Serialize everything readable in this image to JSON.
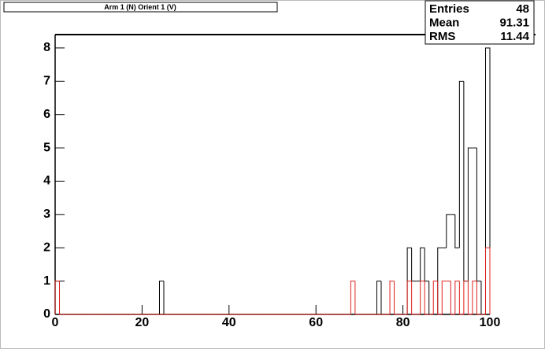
{
  "chart_data": {
    "type": "histogram",
    "title": "Arm 1 (N) Orient 1 (V)",
    "stats": [
      {
        "label": "Entries",
        "value": 48
      },
      {
        "label": "Mean",
        "value": 91.31
      },
      {
        "label": "RMS",
        "value": 11.44
      }
    ],
    "bins": [
      0,
      1,
      2,
      3,
      4,
      5,
      6,
      7,
      8,
      9,
      10,
      11,
      12,
      13,
      14,
      15,
      16,
      17,
      18,
      19,
      20,
      21,
      22,
      23,
      24,
      25,
      26,
      27,
      28,
      29,
      30,
      31,
      32,
      33,
      34,
      35,
      36,
      37,
      38,
      39,
      40,
      41,
      42,
      43,
      44,
      45,
      46,
      47,
      48,
      49,
      50,
      51,
      52,
      53,
      54,
      55,
      56,
      57,
      58,
      59,
      60,
      61,
      62,
      63,
      64,
      65,
      66,
      67,
      68,
      69,
      70,
      71,
      72,
      73,
      74,
      75,
      76,
      77,
      78,
      79,
      80,
      81,
      82,
      83,
      84,
      85,
      86,
      87,
      88,
      89,
      90,
      91,
      92,
      93,
      94,
      95,
      96,
      97,
      98,
      99,
      100
    ],
    "series": [
      {
        "color": "#000000",
        "values": [
          0,
          0,
          0,
          0,
          0,
          0,
          0,
          0,
          0,
          0,
          0,
          0,
          0,
          0,
          0,
          0,
          0,
          0,
          0,
          0,
          0,
          0,
          0,
          0,
          1,
          0,
          0,
          0,
          0,
          0,
          0,
          0,
          0,
          0,
          0,
          0,
          0,
          0,
          0,
          0,
          0,
          0,
          0,
          0,
          0,
          0,
          0,
          0,
          0,
          0,
          0,
          0,
          0,
          0,
          0,
          0,
          0,
          0,
          0,
          0,
          0,
          0,
          0,
          0,
          0,
          0,
          0,
          0,
          0,
          0,
          0,
          0,
          0,
          0,
          1,
          0,
          0,
          0,
          0,
          0,
          0,
          2,
          1,
          1,
          2,
          1,
          0,
          0,
          2,
          2,
          3,
          3,
          2,
          7,
          1,
          5,
          5,
          1,
          0,
          8
        ]
      },
      {
        "color": "#e0201c",
        "values": [
          1,
          0,
          0,
          0,
          0,
          0,
          0,
          0,
          0,
          0,
          0,
          0,
          0,
          0,
          0,
          0,
          0,
          0,
          0,
          0,
          0,
          0,
          0,
          0,
          0,
          0,
          0,
          0,
          0,
          0,
          0,
          0,
          0,
          0,
          0,
          0,
          0,
          0,
          0,
          0,
          0,
          0,
          0,
          0,
          0,
          0,
          0,
          0,
          0,
          0,
          0,
          0,
          0,
          0,
          0,
          0,
          0,
          0,
          0,
          0,
          0,
          0,
          0,
          0,
          0,
          0,
          0,
          0,
          1,
          0,
          0,
          0,
          0,
          0,
          0,
          0,
          0,
          1,
          0,
          0,
          0,
          1,
          0,
          0,
          1,
          0,
          0,
          1,
          0,
          1,
          1,
          0,
          1,
          0,
          1,
          0,
          1,
          0,
          0,
          2
        ]
      }
    ],
    "xlim": [
      0,
      100
    ],
    "xticks": [
      0,
      20,
      40,
      60,
      80,
      100
    ],
    "ylim": [
      0,
      8.4
    ],
    "yticks": [
      0,
      1,
      2,
      3,
      4,
      5,
      6,
      7,
      8
    ]
  }
}
